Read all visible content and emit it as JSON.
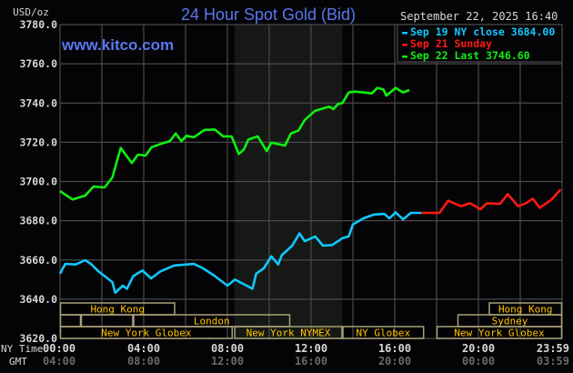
{
  "chart_data": {
    "type": "line",
    "title": "24 Hour Spot Gold (Bid)",
    "watermark": "www.kitco.com",
    "ylabel": "USD/oz",
    "timestamp": "September 22, 2025 16:40",
    "ylim": [
      3620,
      3780
    ],
    "yticks": [
      "3780.0",
      "3760.0",
      "3740.0",
      "3720.0",
      "3700.0",
      "3680.0",
      "3660.0",
      "3640.0",
      "3620.0"
    ],
    "xlim_hours": [
      0,
      24
    ],
    "x_axis": {
      "ny_label": "NY Time",
      "gmt_label": "GMT",
      "ny_ticks": [
        "00:00",
        "04:00",
        "08:00",
        "12:00",
        "16:00",
        "20:00",
        "23:59"
      ],
      "gmt_ticks": [
        "04:00",
        "08:00",
        "12:00",
        "16:00",
        "20:00",
        "00:00",
        "03:59"
      ]
    },
    "grid": true,
    "legend_position": "top-right",
    "shaded_session_hours": [
      8.33,
      13.5
    ],
    "colors": {
      "background": "#040306",
      "grid": "#4a4a4a",
      "shade": "#151815",
      "title": "#5a78f0",
      "session_border": "#a8a278",
      "session_text": "#ffc400"
    },
    "series": [
      {
        "name": "Sep 19 NY close 3684.00",
        "color": "#10c8ff",
        "x": [
          0,
          0.25,
          0.75,
          1.2,
          1.48,
          1.84,
          2.13,
          2.5,
          2.64,
          3.0,
          3.2,
          3.5,
          3.94,
          4.35,
          4.8,
          5.46,
          6.4,
          6.84,
          7.4,
          8.0,
          8.36,
          8.87,
          9.2,
          9.38,
          9.74,
          10.1,
          10.43,
          10.6,
          11.1,
          11.45,
          11.7,
          12.2,
          12.57,
          13.0,
          13.5,
          13.8,
          14.0,
          14.5,
          15.0,
          15.5,
          15.75,
          16.04,
          16.4,
          16.77,
          17.27
        ],
        "y": [
          3653,
          3658,
          3657.7,
          3659.9,
          3658,
          3654.2,
          3651.8,
          3648.7,
          3643.3,
          3646.9,
          3645.3,
          3651.8,
          3654.6,
          3650.6,
          3654.2,
          3657.2,
          3658,
          3655.7,
          3651.8,
          3646.9,
          3650,
          3647.2,
          3645.3,
          3653,
          3655.7,
          3661.9,
          3657.7,
          3662.4,
          3667.3,
          3673.5,
          3669.6,
          3672,
          3667.3,
          3667.6,
          3671.1,
          3672,
          3678.1,
          3681.2,
          3683.1,
          3683.5,
          3681.2,
          3684.3,
          3680.7,
          3684,
          3684
        ]
      },
      {
        "name": "Sep 21 Sunday",
        "color": "#ff1a10",
        "x": [
          17.27,
          18.14,
          18.55,
          19.16,
          19.6,
          20.1,
          20.4,
          21.04,
          21.4,
          21.9,
          22.27,
          22.6,
          22.93,
          23.5,
          23.93
        ],
        "y": [
          3684,
          3684,
          3690.2,
          3687.4,
          3688.9,
          3685.8,
          3688.9,
          3688.6,
          3693.6,
          3687.4,
          3688.9,
          3691.3,
          3686.6,
          3690.8,
          3695.9
        ]
      },
      {
        "name": "Sep 22 Last 3746.60",
        "color": "#10f010",
        "x": [
          0,
          0.6,
          1.2,
          1.6,
          2.13,
          2.5,
          2.9,
          3.43,
          3.72,
          4.09,
          4.38,
          4.8,
          5.25,
          5.53,
          5.8,
          6.04,
          6.4,
          6.9,
          7.4,
          7.8,
          8.2,
          8.55,
          8.8,
          9.0,
          9.45,
          9.88,
          10.1,
          10.75,
          11.04,
          11.4,
          11.7,
          12.2,
          12.86,
          13.07,
          13.29,
          13.5,
          13.8,
          14.09,
          14.5,
          14.9,
          15.17,
          15.46,
          15.6,
          16.04,
          16.4,
          16.7
        ],
        "y": [
          3695.1,
          3690.8,
          3692.8,
          3697.4,
          3697,
          3702,
          3717.1,
          3709.4,
          3713.7,
          3713.2,
          3717.5,
          3719.1,
          3720.6,
          3724.5,
          3720.6,
          3723.3,
          3722.6,
          3726.3,
          3726.5,
          3723,
          3723,
          3714,
          3716.5,
          3721.4,
          3723,
          3715.5,
          3719.8,
          3718.3,
          3724.5,
          3726,
          3731.4,
          3736.1,
          3738.1,
          3736.9,
          3739.5,
          3740,
          3745.4,
          3745.8,
          3745.4,
          3744.9,
          3747.7,
          3746.9,
          3743.8,
          3747.7,
          3745.4,
          3746.6
        ]
      }
    ],
    "sessions": [
      {
        "label": "Hong Kong",
        "row": 0,
        "start": 0,
        "end": 5.5
      },
      {
        "label": "Hong Kong",
        "row": 0,
        "start": 20.5,
        "end": 24
      },
      {
        "label": "",
        "row": 1,
        "start": 0,
        "end": 1
      },
      {
        "label": "",
        "row": 1,
        "start": 1,
        "end": 3.5
      },
      {
        "label": "London",
        "row": 1,
        "start": 3.5,
        "end": 11
      },
      {
        "label": "Sydney",
        "row": 1,
        "start": 19,
        "end": 24
      },
      {
        "label": "New York Globex",
        "row": 2,
        "start": 0,
        "end": 8.25
      },
      {
        "label": "New York NYMEX",
        "row": 2,
        "start": 8.33,
        "end": 13.5
      },
      {
        "label": "NY Globex",
        "row": 2,
        "start": 13.5,
        "end": 17.4
      },
      {
        "label": "New York Globex",
        "row": 2,
        "start": 18,
        "end": 24
      }
    ]
  }
}
